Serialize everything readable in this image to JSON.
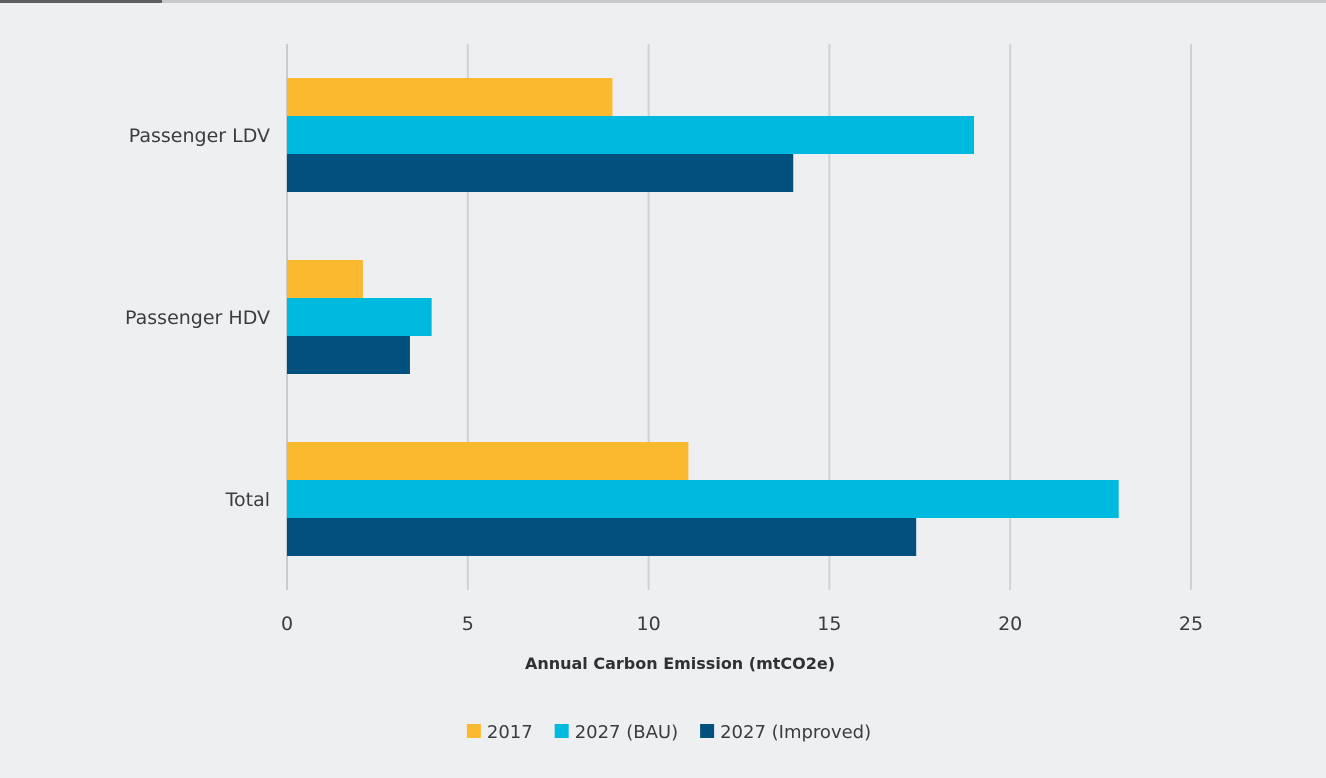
{
  "chart_data": {
    "type": "bar",
    "orientation": "horizontal",
    "categories": [
      "Passenger LDV",
      "Passenger HDV",
      "Total"
    ],
    "series": [
      {
        "name": "2017",
        "color": "#fbb92f",
        "values": [
          9.0,
          2.1,
          11.1
        ]
      },
      {
        "name": "2027 (BAU)",
        "color": "#00b9df",
        "values": [
          19.0,
          4.0,
          23.0
        ]
      },
      {
        "name": "2027 (Improved)",
        "color": "#02507d",
        "values": [
          14.0,
          3.4,
          17.4
        ]
      }
    ],
    "xlabel": "Annual Carbon Emission (mtCO2e)",
    "ylabel": "",
    "title": "",
    "xlim": [
      0,
      25
    ],
    "xticks": [
      0,
      5,
      10,
      15,
      20,
      25
    ],
    "xtick_labels": [
      "0",
      "5",
      "10",
      "15",
      "20",
      "25"
    ],
    "grid": "vertical",
    "legend_position": "bottom-center"
  }
}
